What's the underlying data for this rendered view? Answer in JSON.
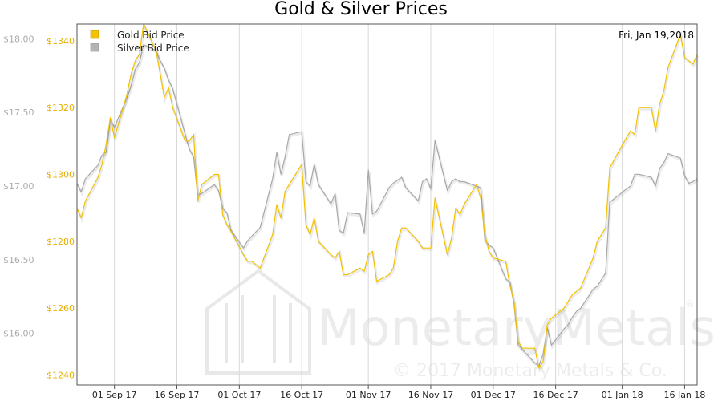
{
  "chart_data": {
    "type": "line",
    "title": "Gold & Silver Prices",
    "date_label": "Fri, Jan 19,2018",
    "x_ticks": [
      "01 Sep 17",
      "16 Sep 17",
      "01 Oct 17",
      "16 Oct 17",
      "01 Nov 17",
      "16 Nov 17",
      "01 Dec 17",
      "16 Dec 17",
      "01 Jan 18",
      "16 Jan 18"
    ],
    "x_range": [
      "2017-08-23",
      "2018-01-19"
    ],
    "grid": "vertical",
    "legend_position": "top-left",
    "axes": {
      "left_silver": {
        "ticks": [
          "$16.00",
          "$16.50",
          "$17.00",
          "$17.50",
          "$18.00"
        ],
        "values": [
          16.0,
          16.5,
          17.0,
          17.5,
          18.0
        ],
        "range": [
          15.65,
          18.1
        ],
        "color": "#aaaaaa"
      },
      "left_gold": {
        "ticks": [
          "$1240",
          "$1260",
          "$1280",
          "$1300",
          "$1320",
          "$1340"
        ],
        "values": [
          1240,
          1260,
          1280,
          1300,
          1320,
          1340
        ],
        "range": [
          1237,
          1345
        ],
        "color": "#e6b000"
      }
    },
    "series": [
      {
        "name": "Gold Bid Price",
        "color": "#f2c200",
        "axis": "left_gold",
        "points": [
          [
            "2017-08-23",
            1290
          ],
          [
            "2017-08-24",
            1287
          ],
          [
            "2017-08-25",
            1292
          ],
          [
            "2017-08-28",
            1299
          ],
          [
            "2017-08-29",
            1303
          ],
          [
            "2017-08-30",
            1309
          ],
          [
            "2017-08-31",
            1317
          ],
          [
            "2017-09-01",
            1311
          ],
          [
            "2017-09-04",
            1324
          ],
          [
            "2017-09-05",
            1330
          ],
          [
            "2017-09-06",
            1334
          ],
          [
            "2017-09-07",
            1336
          ],
          [
            "2017-09-08",
            1345
          ],
          [
            "2017-09-11",
            1337
          ],
          [
            "2017-09-12",
            1330
          ],
          [
            "2017-09-13",
            1323
          ],
          [
            "2017-09-14",
            1326
          ],
          [
            "2017-09-15",
            1320
          ],
          [
            "2017-09-18",
            1310
          ],
          [
            "2017-09-19",
            1310
          ],
          [
            "2017-09-20",
            1312
          ],
          [
            "2017-09-21",
            1292
          ],
          [
            "2017-09-22",
            1297
          ],
          [
            "2017-09-25",
            1300
          ],
          [
            "2017-09-26",
            1300
          ],
          [
            "2017-09-27",
            1288
          ],
          [
            "2017-09-28",
            1285
          ],
          [
            "2017-09-29",
            1283
          ],
          [
            "2017-10-02",
            1276
          ],
          [
            "2017-10-03",
            1274
          ],
          [
            "2017-10-04",
            1274
          ],
          [
            "2017-10-05",
            1273
          ],
          [
            "2017-10-06",
            1272
          ],
          [
            "2017-10-09",
            1282
          ],
          [
            "2017-10-10",
            1291
          ],
          [
            "2017-10-11",
            1287
          ],
          [
            "2017-10-12",
            1295
          ],
          [
            "2017-10-13",
            1297
          ],
          [
            "2017-10-16",
            1303
          ],
          [
            "2017-10-17",
            1285
          ],
          [
            "2017-10-18",
            1282
          ],
          [
            "2017-10-19",
            1287
          ],
          [
            "2017-10-20",
            1280
          ],
          [
            "2017-10-23",
            1276
          ],
          [
            "2017-10-24",
            1275
          ],
          [
            "2017-10-25",
            1277
          ],
          [
            "2017-10-26",
            1270
          ],
          [
            "2017-10-27",
            1270
          ],
          [
            "2017-10-30",
            1272
          ],
          [
            "2017-10-31",
            1271
          ],
          [
            "2017-11-01",
            1276
          ],
          [
            "2017-11-02",
            1277
          ],
          [
            "2017-11-03",
            1268
          ],
          [
            "2017-11-06",
            1270
          ],
          [
            "2017-11-07",
            1272
          ],
          [
            "2017-11-08",
            1280
          ],
          [
            "2017-11-09",
            1284
          ],
          [
            "2017-11-10",
            1284
          ],
          [
            "2017-11-13",
            1280
          ],
          [
            "2017-11-14",
            1278
          ],
          [
            "2017-11-15",
            1278
          ],
          [
            "2017-11-16",
            1278
          ],
          [
            "2017-11-17",
            1293
          ],
          [
            "2017-11-20",
            1276
          ],
          [
            "2017-11-21",
            1281
          ],
          [
            "2017-11-22",
            1290
          ],
          [
            "2017-11-23",
            1288
          ],
          [
            "2017-11-24",
            1291
          ],
          [
            "2017-11-27",
            1297
          ],
          [
            "2017-11-28",
            1293
          ],
          [
            "2017-11-29",
            1282
          ],
          [
            "2017-11-30",
            1277
          ],
          [
            "2017-12-01",
            1275
          ],
          [
            "2017-12-04",
            1274
          ],
          [
            "2017-12-05",
            1267
          ],
          [
            "2017-12-06",
            1262
          ],
          [
            "2017-12-07",
            1250
          ],
          [
            "2017-12-08",
            1248
          ],
          [
            "2017-12-11",
            1248
          ],
          [
            "2017-12-12",
            1242
          ],
          [
            "2017-12-13",
            1244
          ],
          [
            "2017-12-14",
            1255
          ],
          [
            "2017-12-15",
            1257
          ],
          [
            "2017-12-18",
            1260
          ],
          [
            "2017-12-19",
            1262
          ],
          [
            "2017-12-20",
            1264
          ],
          [
            "2017-12-21",
            1265
          ],
          [
            "2017-12-22",
            1266
          ],
          [
            "2017-12-25",
            1275
          ],
          [
            "2017-12-26",
            1280
          ],
          [
            "2017-12-28",
            1284
          ],
          [
            "2017-12-29",
            1302
          ],
          [
            "2018-01-02",
            1311
          ],
          [
            "2018-01-03",
            1313
          ],
          [
            "2018-01-04",
            1312
          ],
          [
            "2018-01-05",
            1320
          ],
          [
            "2018-01-08",
            1320
          ],
          [
            "2018-01-09",
            1313
          ],
          [
            "2018-01-10",
            1321
          ],
          [
            "2018-01-11",
            1325
          ],
          [
            "2018-01-12",
            1332
          ],
          [
            "2018-01-15",
            1342
          ],
          [
            "2018-01-16",
            1335
          ],
          [
            "2018-01-17",
            1334
          ],
          [
            "2018-01-18",
            1333
          ],
          [
            "2018-01-19",
            1336
          ]
        ]
      },
      {
        "name": "Silver Bid Price",
        "color": "#a8a8a8",
        "axis": "left_silver",
        "points": [
          [
            "2017-08-23",
            17.02
          ],
          [
            "2017-08-24",
            16.96
          ],
          [
            "2017-08-25",
            17.05
          ],
          [
            "2017-08-28",
            17.14
          ],
          [
            "2017-08-29",
            17.21
          ],
          [
            "2017-08-30",
            17.23
          ],
          [
            "2017-08-31",
            17.45
          ],
          [
            "2017-09-01",
            17.4
          ],
          [
            "2017-09-04",
            17.6
          ],
          [
            "2017-09-05",
            17.68
          ],
          [
            "2017-09-06",
            17.79
          ],
          [
            "2017-09-07",
            17.84
          ],
          [
            "2017-09-08",
            17.96
          ],
          [
            "2017-09-11",
            17.92
          ],
          [
            "2017-09-12",
            17.85
          ],
          [
            "2017-09-13",
            17.8
          ],
          [
            "2017-09-14",
            17.72
          ],
          [
            "2017-09-15",
            17.66
          ],
          [
            "2017-09-18",
            17.35
          ],
          [
            "2017-09-19",
            17.25
          ],
          [
            "2017-09-20",
            17.2
          ],
          [
            "2017-09-21",
            16.94
          ],
          [
            "2017-09-22",
            16.95
          ],
          [
            "2017-09-25",
            17.01
          ],
          [
            "2017-09-26",
            16.97
          ],
          [
            "2017-09-27",
            16.85
          ],
          [
            "2017-09-28",
            16.82
          ],
          [
            "2017-09-29",
            16.7
          ],
          [
            "2017-10-02",
            16.58
          ],
          [
            "2017-10-03",
            16.63
          ],
          [
            "2017-10-04",
            16.66
          ],
          [
            "2017-10-05",
            16.69
          ],
          [
            "2017-10-06",
            16.72
          ],
          [
            "2017-10-09",
            17.05
          ],
          [
            "2017-10-10",
            17.23
          ],
          [
            "2017-10-11",
            17.08
          ],
          [
            "2017-10-12",
            17.2
          ],
          [
            "2017-10-13",
            17.35
          ],
          [
            "2017-10-16",
            17.37
          ],
          [
            "2017-10-17",
            17.03
          ],
          [
            "2017-10-18",
            17.0
          ],
          [
            "2017-10-19",
            17.15
          ],
          [
            "2017-10-20",
            17.01
          ],
          [
            "2017-10-23",
            16.88
          ],
          [
            "2017-10-24",
            16.95
          ],
          [
            "2017-10-25",
            16.7
          ],
          [
            "2017-10-26",
            16.68
          ],
          [
            "2017-10-27",
            16.82
          ],
          [
            "2017-10-30",
            16.81
          ],
          [
            "2017-10-31",
            16.68
          ],
          [
            "2017-11-01",
            17.11
          ],
          [
            "2017-11-02",
            16.81
          ],
          [
            "2017-11-03",
            16.83
          ],
          [
            "2017-11-06",
            16.99
          ],
          [
            "2017-11-07",
            17.02
          ],
          [
            "2017-11-08",
            17.04
          ],
          [
            "2017-11-09",
            17.06
          ],
          [
            "2017-11-10",
            16.99
          ],
          [
            "2017-11-13",
            16.9
          ],
          [
            "2017-11-14",
            17.03
          ],
          [
            "2017-11-15",
            17.05
          ],
          [
            "2017-11-16",
            16.98
          ],
          [
            "2017-11-17",
            17.31
          ],
          [
            "2017-11-20",
            16.97
          ],
          [
            "2017-11-21",
            17.03
          ],
          [
            "2017-11-22",
            17.05
          ],
          [
            "2017-11-23",
            17.03
          ],
          [
            "2017-11-24",
            17.03
          ],
          [
            "2017-11-27",
            17.0
          ],
          [
            "2017-11-28",
            16.99
          ],
          [
            "2017-11-29",
            16.63
          ],
          [
            "2017-11-30",
            16.6
          ],
          [
            "2017-12-01",
            16.58
          ],
          [
            "2017-12-04",
            16.37
          ],
          [
            "2017-12-05",
            16.35
          ],
          [
            "2017-12-06",
            16.2
          ],
          [
            "2017-12-07",
            15.92
          ],
          [
            "2017-12-08",
            15.89
          ],
          [
            "2017-12-11",
            15.8
          ],
          [
            "2017-12-12",
            15.78
          ],
          [
            "2017-12-13",
            15.86
          ],
          [
            "2017-12-14",
            16.04
          ],
          [
            "2017-12-15",
            15.92
          ],
          [
            "2017-12-18",
            16.03
          ],
          [
            "2017-12-19",
            16.06
          ],
          [
            "2017-12-20",
            16.11
          ],
          [
            "2017-12-21",
            16.15
          ],
          [
            "2017-12-22",
            16.17
          ],
          [
            "2017-12-25",
            16.3
          ],
          [
            "2017-12-26",
            16.32
          ],
          [
            "2017-12-28",
            16.41
          ],
          [
            "2017-12-29",
            16.89
          ],
          [
            "2018-01-02",
            16.98
          ],
          [
            "2018-01-03",
            17.0
          ],
          [
            "2018-01-04",
            17.08
          ],
          [
            "2018-01-05",
            17.08
          ],
          [
            "2018-01-08",
            17.06
          ],
          [
            "2018-01-09",
            17.0
          ],
          [
            "2018-01-10",
            17.12
          ],
          [
            "2018-01-11",
            17.16
          ],
          [
            "2018-01-12",
            17.22
          ],
          [
            "2018-01-15",
            17.19
          ],
          [
            "2018-01-16",
            17.07
          ],
          [
            "2018-01-17",
            17.02
          ],
          [
            "2018-01-18",
            17.03
          ],
          [
            "2018-01-19",
            17.05
          ]
        ]
      }
    ],
    "watermark": {
      "brand": "MonetaryMetals",
      "registered": "®",
      "copyright": "© 2017 Monetary Metals & Co."
    }
  }
}
